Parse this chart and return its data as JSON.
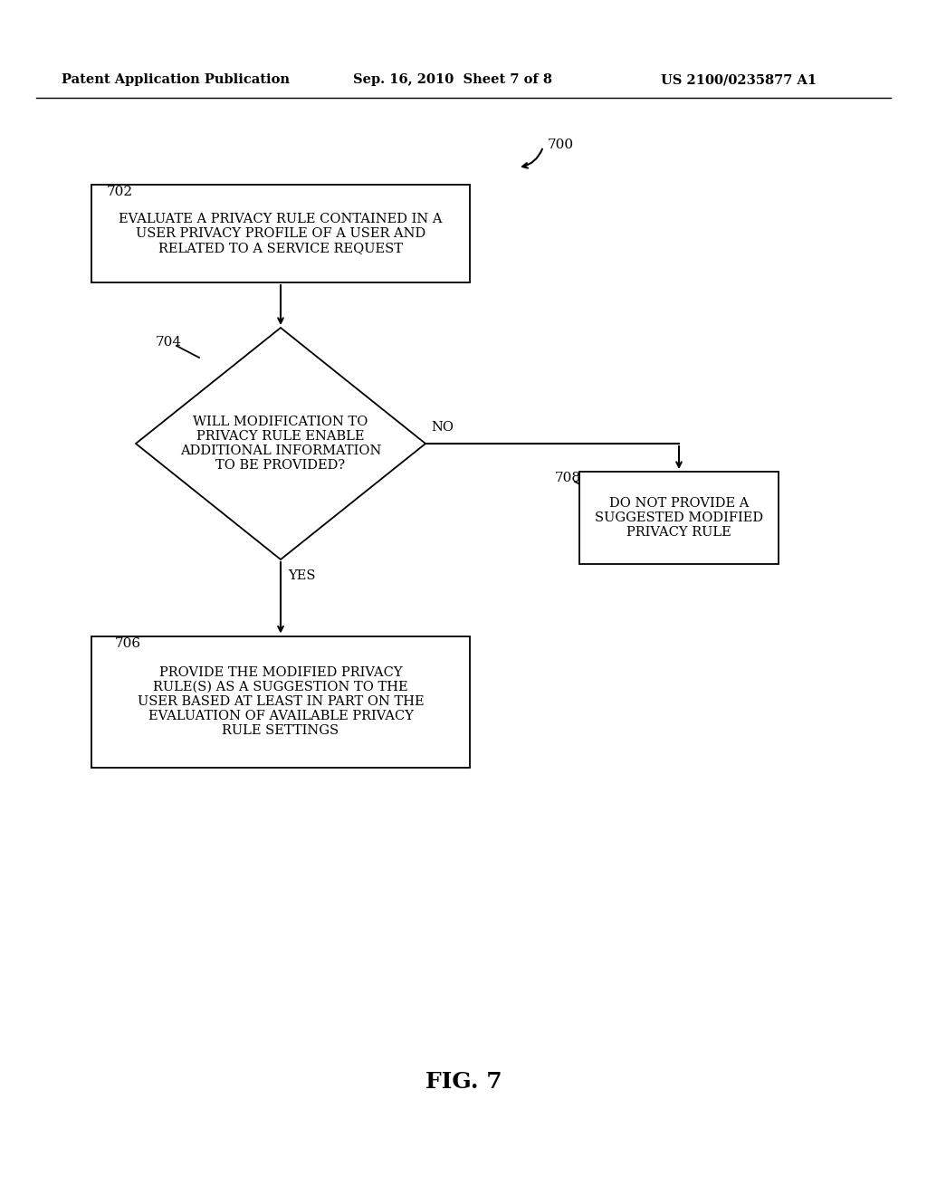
{
  "background_color": "#ffffff",
  "header_left": "Patent Application Publication",
  "header_mid": "Sep. 16, 2010  Sheet 7 of 8",
  "header_right": "US 2100/0235877 A1",
  "fig_label": "FIG. 7",
  "flow_label": "700",
  "node_702_label": "702",
  "node_704_label": "704",
  "node_706_label": "706",
  "node_708_label": "708",
  "box702_text": "EVALUATE A PRIVACY RULE CONTAINED IN A\nUSER PRIVACY PROFILE OF A USER AND\nRELATED TO A SERVICE REQUEST",
  "diamond704_text": "WILL MODIFICATION TO\nPRIVACY RULE ENABLE\nADDITIONAL INFORMATION\nTO BE PROVIDED?",
  "box706_text": "PROVIDE THE MODIFIED PRIVACY\nRULE(S) AS A SUGGESTION TO THE\nUSER BASED AT LEAST IN PART ON THE\nEVALUATION OF AVAILABLE PRIVACY\nRULE SETTINGS",
  "box708_text": "DO NOT PROVIDE A\nSUGGESTED MODIFIED\nPRIVACY RULE",
  "yes_label": "YES",
  "no_label": "NO",
  "text_color": "#000000",
  "line_color": "#000000"
}
